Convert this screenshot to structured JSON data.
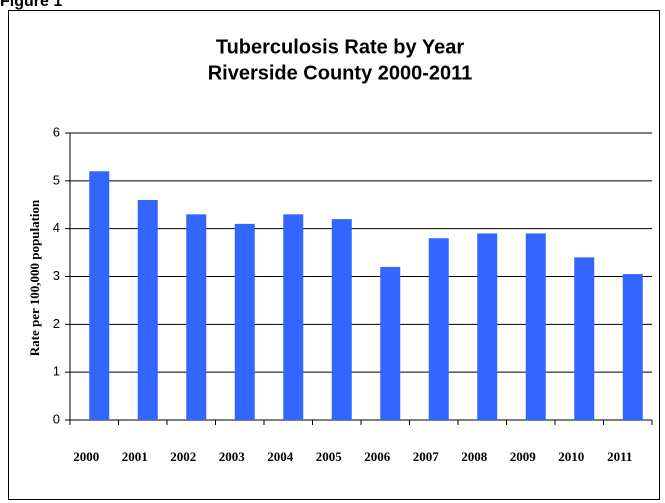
{
  "figure_label": "Figure 1",
  "chart_data": {
    "type": "bar",
    "title": [
      "Tuberculosis Rate by Year",
      "Riverside County 2000-2011"
    ],
    "y_label": "Rate per 100,000 population",
    "categories": [
      "2000",
      "2001",
      "2002",
      "2003",
      "2004",
      "2005",
      "2006",
      "2007",
      "2008",
      "2009",
      "2010",
      "2011"
    ],
    "values": [
      5.2,
      4.6,
      4.3,
      4.1,
      4.3,
      4.2,
      3.2,
      3.8,
      3.9,
      3.9,
      3.4,
      3.05
    ],
    "color": "#3366ff",
    "ylim": [
      0,
      6
    ],
    "yticks": [
      0,
      1,
      2,
      3,
      4,
      5,
      6
    ],
    "grid": true
  }
}
